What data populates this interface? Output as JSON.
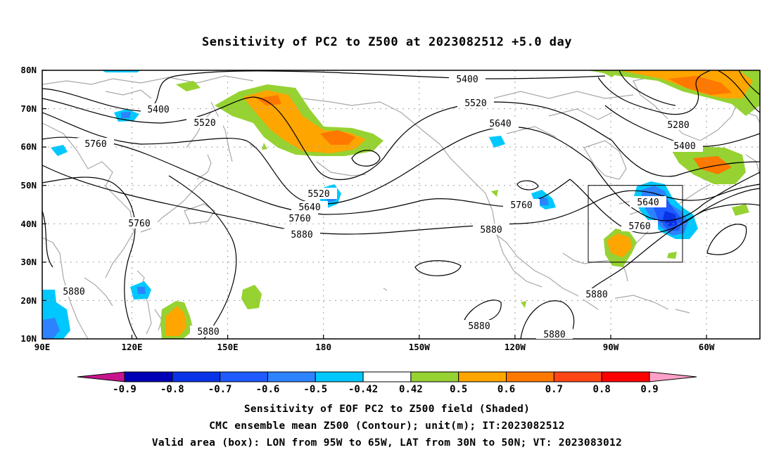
{
  "title": "Sensitivity of PC2 to Z500 at 2023082512 +5.0 day",
  "map": {
    "lat_ticks": [
      "80N",
      "70N",
      "60N",
      "50N",
      "40N",
      "30N",
      "20N",
      "10N"
    ],
    "lon_ticks": [
      "90E",
      "120E",
      "150E",
      "180",
      "150W",
      "120W",
      "90W",
      "60W"
    ],
    "contour_labels": [
      "5400",
      "5400",
      "5400",
      "5520",
      "5520",
      "5520",
      "5640",
      "5640",
      "5640",
      "5760",
      "5760",
      "5760",
      "5760",
      "5760",
      "5880",
      "5880",
      "5880",
      "5880",
      "5880",
      "5880",
      "5280"
    ],
    "box": {
      "lon_from": "95W",
      "lon_to": "65W",
      "lat_from": "30N",
      "lat_to": "50N"
    }
  },
  "colorbar": {
    "labels": [
      "-0.9",
      "-0.8",
      "-0.7",
      "-0.6",
      "-0.5",
      "-0.42",
      "0.42",
      "0.5",
      "0.6",
      "0.7",
      "0.8",
      "0.9"
    ],
    "colors": [
      "#0000b4",
      "#0a32e6",
      "#1e5aff",
      "#2d82ff",
      "#00c8ff",
      "#ffffff",
      "#96d232",
      "#ffa500",
      "#ff7800",
      "#ff4614",
      "#ff0000"
    ],
    "low_arrow_color": "#c8148c",
    "high_arrow_color": "#ffa0c8"
  },
  "caption": {
    "line1": "Sensitivity of EOF PC2 to Z500 field (Shaded)",
    "line2": "CMC ensemble mean Z500 (Contour); unit(m); IT:2023082512",
    "line3": "Valid area (box): LON from 95W to 65W, LAT from 30N to 50N; VT: 2023083012"
  }
}
